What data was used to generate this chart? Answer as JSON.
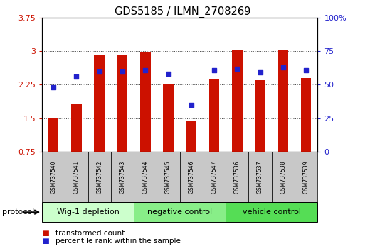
{
  "title": "GDS5185 / ILMN_2708269",
  "samples": [
    "GSM737540",
    "GSM737541",
    "GSM737542",
    "GSM737543",
    "GSM737544",
    "GSM737545",
    "GSM737546",
    "GSM737547",
    "GSM737536",
    "GSM737537",
    "GSM737538",
    "GSM737539"
  ],
  "transformed_count": [
    1.5,
    1.82,
    2.92,
    2.92,
    2.97,
    2.28,
    1.44,
    2.38,
    3.02,
    2.35,
    3.03,
    2.4
  ],
  "percentile_rank": [
    48,
    56,
    60,
    60,
    61,
    58,
    35,
    61,
    62,
    59,
    63,
    61
  ],
  "bar_color": "#cc1100",
  "dot_color": "#2222cc",
  "ylim_left": [
    0.75,
    3.75
  ],
  "ylim_right": [
    0,
    100
  ],
  "yticks_left": [
    0.75,
    1.5,
    2.25,
    3.0,
    3.75
  ],
  "yticks_right": [
    0,
    25,
    50,
    75,
    100
  ],
  "ytick_labels_left": [
    "0.75",
    "1.5",
    "2.25",
    "3",
    "3.75"
  ],
  "ytick_labels_right": [
    "0",
    "25",
    "50",
    "75",
    "100%"
  ],
  "groups": [
    {
      "label": "Wig-1 depletion",
      "start": 0,
      "end": 4,
      "color": "#ccffcc"
    },
    {
      "label": "negative control",
      "start": 4,
      "end": 8,
      "color": "#88ee88"
    },
    {
      "label": "vehicle control",
      "start": 8,
      "end": 12,
      "color": "#55dd55"
    }
  ],
  "protocol_label": "protocol",
  "legend_bar_label": "transformed count",
  "legend_dot_label": "percentile rank within the sample",
  "grid_color": "#444444",
  "bar_width": 0.45,
  "background_plot": "#ffffff",
  "background_tick": "#c8c8c8"
}
